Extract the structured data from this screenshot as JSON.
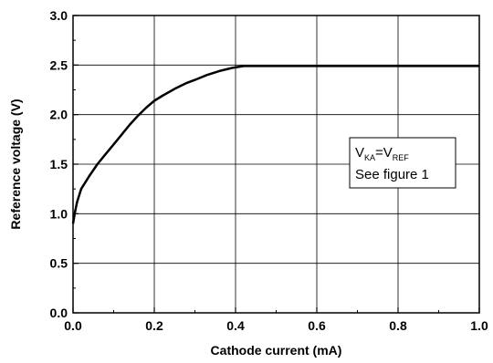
{
  "chart_data": {
    "type": "line",
    "xlabel": "Cathode current (mA)",
    "ylabel": "Reference voltage (V)",
    "xlim": [
      0.0,
      1.0
    ],
    "ylim": [
      0.0,
      3.0
    ],
    "x_ticks": [
      "0.0",
      "0.2",
      "0.4",
      "0.6",
      "0.8",
      "1.0"
    ],
    "y_ticks": [
      "0.0",
      "0.5",
      "1.0",
      "1.5",
      "2.0",
      "2.5",
      "3.0"
    ],
    "grid": true,
    "series": [
      {
        "x": [
          0.0,
          0.005,
          0.01,
          0.02,
          0.04,
          0.06,
          0.08,
          0.1,
          0.12,
          0.14,
          0.16,
          0.18,
          0.2,
          0.22,
          0.25,
          0.28,
          0.3,
          0.33,
          0.36,
          0.39,
          0.42,
          0.45,
          0.5,
          0.6,
          0.7,
          0.8,
          0.9,
          1.0
        ],
        "values": [
          0.9,
          1.02,
          1.12,
          1.25,
          1.38,
          1.5,
          1.6,
          1.7,
          1.8,
          1.9,
          1.99,
          2.07,
          2.14,
          2.19,
          2.26,
          2.32,
          2.35,
          2.4,
          2.44,
          2.47,
          2.49,
          2.49,
          2.49,
          2.49,
          2.49,
          2.49,
          2.49,
          2.49
        ]
      }
    ],
    "annotation": {
      "line1_main": "V",
      "line1_sub1": "KA",
      "line1_eq": "=V",
      "line1_sub2": "REF",
      "line2": "See figure 1"
    }
  }
}
